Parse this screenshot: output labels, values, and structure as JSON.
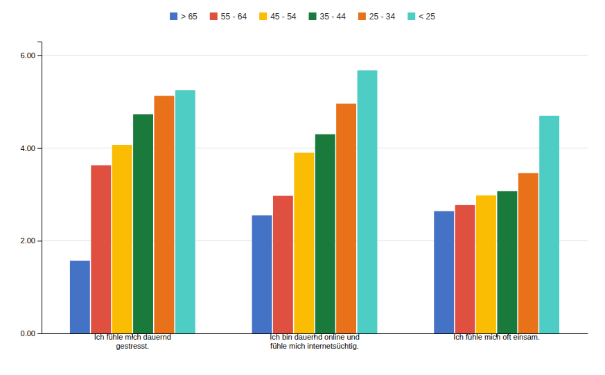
{
  "chart_data": {
    "type": "bar",
    "categories": [
      "Ich fühle mich dauernd\ngestresst.",
      "Ich bin dauernd online und\nfühle mich internetsüchtig.",
      "Ich fühle mich oft einsam."
    ],
    "series": [
      {
        "name": "> 65",
        "color": "#4472C4",
        "values": [
          1.57,
          2.55,
          2.64
        ]
      },
      {
        "name": "55 - 64",
        "color": "#E05040",
        "values": [
          3.63,
          2.97,
          2.77
        ]
      },
      {
        "name": "45 - 54",
        "color": "#FBBC04",
        "values": [
          4.07,
          3.9,
          2.98
        ]
      },
      {
        "name": "35 - 44",
        "color": "#1A7A3C",
        "values": [
          4.73,
          4.3,
          3.07
        ]
      },
      {
        "name": "25 - 34",
        "color": "#E8711A",
        "values": [
          5.13,
          4.96,
          3.46
        ]
      },
      {
        "name": "< 25",
        "color": "#4ECDC4",
        "values": [
          5.25,
          5.68,
          4.7
        ]
      }
    ],
    "ylim": [
      0,
      6.3
    ],
    "yticks": [
      {
        "value": 0.0,
        "label": "0.00"
      },
      {
        "value": 2.0,
        "label": "2.00"
      },
      {
        "value": 4.0,
        "label": "4.00"
      },
      {
        "value": 6.0,
        "label": "6.00"
      }
    ],
    "grid": true,
    "legend": "top"
  }
}
